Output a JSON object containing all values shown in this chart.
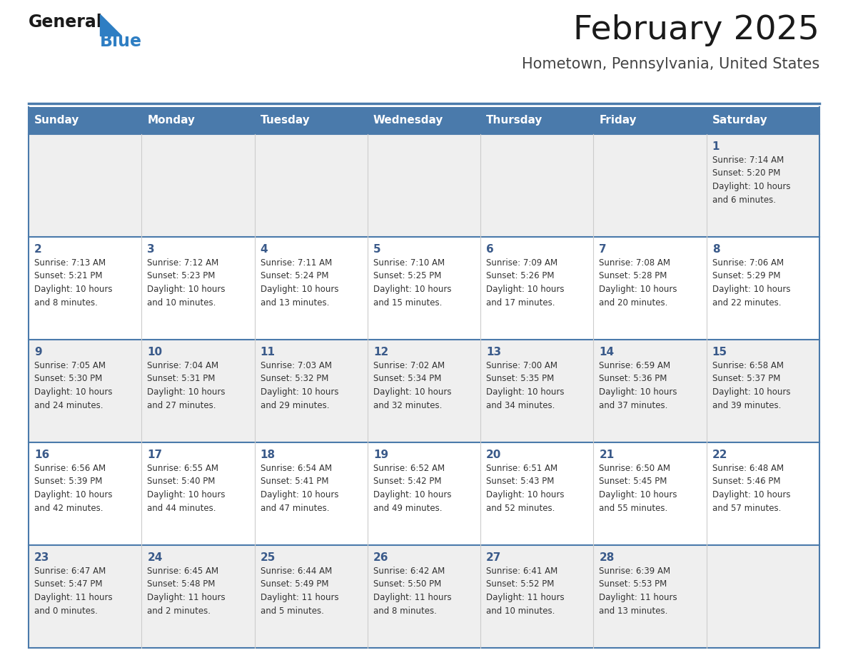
{
  "title": "February 2025",
  "subtitle": "Hometown, Pennsylvania, United States",
  "header_color": "#4a7aab",
  "header_text_color": "#ffffff",
  "cell_bg_odd": "#efefef",
  "cell_bg_even": "#ffffff",
  "day_number_color": "#3a5a8a",
  "text_color": "#333333",
  "line_color": "#4a7aab",
  "border_color": "#4a7aab",
  "days_of_week": [
    "Sunday",
    "Monday",
    "Tuesday",
    "Wednesday",
    "Thursday",
    "Friday",
    "Saturday"
  ],
  "weeks": [
    [
      {
        "day": null,
        "info": null
      },
      {
        "day": null,
        "info": null
      },
      {
        "day": null,
        "info": null
      },
      {
        "day": null,
        "info": null
      },
      {
        "day": null,
        "info": null
      },
      {
        "day": null,
        "info": null
      },
      {
        "day": 1,
        "info": "Sunrise: 7:14 AM\nSunset: 5:20 PM\nDaylight: 10 hours\nand 6 minutes."
      }
    ],
    [
      {
        "day": 2,
        "info": "Sunrise: 7:13 AM\nSunset: 5:21 PM\nDaylight: 10 hours\nand 8 minutes."
      },
      {
        "day": 3,
        "info": "Sunrise: 7:12 AM\nSunset: 5:23 PM\nDaylight: 10 hours\nand 10 minutes."
      },
      {
        "day": 4,
        "info": "Sunrise: 7:11 AM\nSunset: 5:24 PM\nDaylight: 10 hours\nand 13 minutes."
      },
      {
        "day": 5,
        "info": "Sunrise: 7:10 AM\nSunset: 5:25 PM\nDaylight: 10 hours\nand 15 minutes."
      },
      {
        "day": 6,
        "info": "Sunrise: 7:09 AM\nSunset: 5:26 PM\nDaylight: 10 hours\nand 17 minutes."
      },
      {
        "day": 7,
        "info": "Sunrise: 7:08 AM\nSunset: 5:28 PM\nDaylight: 10 hours\nand 20 minutes."
      },
      {
        "day": 8,
        "info": "Sunrise: 7:06 AM\nSunset: 5:29 PM\nDaylight: 10 hours\nand 22 minutes."
      }
    ],
    [
      {
        "day": 9,
        "info": "Sunrise: 7:05 AM\nSunset: 5:30 PM\nDaylight: 10 hours\nand 24 minutes."
      },
      {
        "day": 10,
        "info": "Sunrise: 7:04 AM\nSunset: 5:31 PM\nDaylight: 10 hours\nand 27 minutes."
      },
      {
        "day": 11,
        "info": "Sunrise: 7:03 AM\nSunset: 5:32 PM\nDaylight: 10 hours\nand 29 minutes."
      },
      {
        "day": 12,
        "info": "Sunrise: 7:02 AM\nSunset: 5:34 PM\nDaylight: 10 hours\nand 32 minutes."
      },
      {
        "day": 13,
        "info": "Sunrise: 7:00 AM\nSunset: 5:35 PM\nDaylight: 10 hours\nand 34 minutes."
      },
      {
        "day": 14,
        "info": "Sunrise: 6:59 AM\nSunset: 5:36 PM\nDaylight: 10 hours\nand 37 minutes."
      },
      {
        "day": 15,
        "info": "Sunrise: 6:58 AM\nSunset: 5:37 PM\nDaylight: 10 hours\nand 39 minutes."
      }
    ],
    [
      {
        "day": 16,
        "info": "Sunrise: 6:56 AM\nSunset: 5:39 PM\nDaylight: 10 hours\nand 42 minutes."
      },
      {
        "day": 17,
        "info": "Sunrise: 6:55 AM\nSunset: 5:40 PM\nDaylight: 10 hours\nand 44 minutes."
      },
      {
        "day": 18,
        "info": "Sunrise: 6:54 AM\nSunset: 5:41 PM\nDaylight: 10 hours\nand 47 minutes."
      },
      {
        "day": 19,
        "info": "Sunrise: 6:52 AM\nSunset: 5:42 PM\nDaylight: 10 hours\nand 49 minutes."
      },
      {
        "day": 20,
        "info": "Sunrise: 6:51 AM\nSunset: 5:43 PM\nDaylight: 10 hours\nand 52 minutes."
      },
      {
        "day": 21,
        "info": "Sunrise: 6:50 AM\nSunset: 5:45 PM\nDaylight: 10 hours\nand 55 minutes."
      },
      {
        "day": 22,
        "info": "Sunrise: 6:48 AM\nSunset: 5:46 PM\nDaylight: 10 hours\nand 57 minutes."
      }
    ],
    [
      {
        "day": 23,
        "info": "Sunrise: 6:47 AM\nSunset: 5:47 PM\nDaylight: 11 hours\nand 0 minutes."
      },
      {
        "day": 24,
        "info": "Sunrise: 6:45 AM\nSunset: 5:48 PM\nDaylight: 11 hours\nand 2 minutes."
      },
      {
        "day": 25,
        "info": "Sunrise: 6:44 AM\nSunset: 5:49 PM\nDaylight: 11 hours\nand 5 minutes."
      },
      {
        "day": 26,
        "info": "Sunrise: 6:42 AM\nSunset: 5:50 PM\nDaylight: 11 hours\nand 8 minutes."
      },
      {
        "day": 27,
        "info": "Sunrise: 6:41 AM\nSunset: 5:52 PM\nDaylight: 11 hours\nand 10 minutes."
      },
      {
        "day": 28,
        "info": "Sunrise: 6:39 AM\nSunset: 5:53 PM\nDaylight: 11 hours\nand 13 minutes."
      },
      {
        "day": null,
        "info": null
      }
    ]
  ],
  "logo_text_general": "General",
  "logo_text_blue": "Blue",
  "logo_color_general": "#1a1a1a",
  "logo_color_blue": "#2e7ec3",
  "logo_triangle_color": "#2e7ec3",
  "fig_width": 11.88,
  "fig_height": 9.18,
  "dpi": 100
}
